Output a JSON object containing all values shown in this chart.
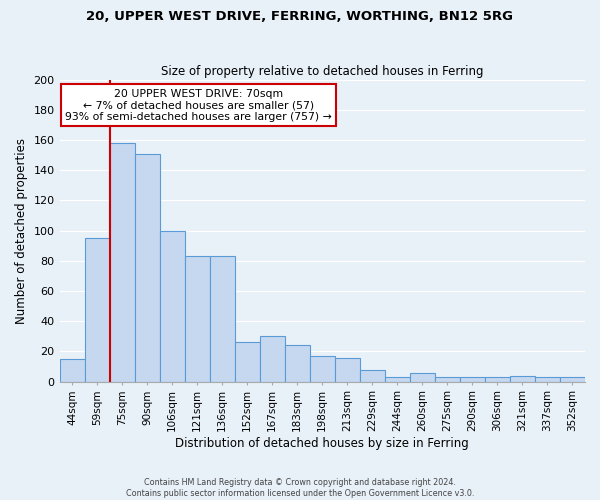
{
  "title": "20, UPPER WEST DRIVE, FERRING, WORTHING, BN12 5RG",
  "subtitle": "Size of property relative to detached houses in Ferring",
  "xlabel": "Distribution of detached houses by size in Ferring",
  "ylabel": "Number of detached properties",
  "bar_labels": [
    "44sqm",
    "59sqm",
    "75sqm",
    "90sqm",
    "106sqm",
    "121sqm",
    "136sqm",
    "152sqm",
    "167sqm",
    "183sqm",
    "198sqm",
    "213sqm",
    "229sqm",
    "244sqm",
    "260sqm",
    "275sqm",
    "290sqm",
    "306sqm",
    "321sqm",
    "337sqm",
    "352sqm"
  ],
  "bar_values": [
    15,
    95,
    158,
    151,
    100,
    83,
    83,
    26,
    30,
    24,
    17,
    16,
    8,
    3,
    6,
    3,
    3,
    3,
    4,
    3,
    3
  ],
  "bar_color": "#c5d8f0",
  "bar_edge_color": "#5b9bd5",
  "bg_color": "#e8f0f8",
  "grid_color": "#ffffff",
  "property_size": "70sqm",
  "pct_smaller": "7%",
  "n_smaller": 57,
  "pct_larger_semi": "93%",
  "n_larger_semi": 757,
  "vline_x_index": 1.5,
  "annotation_box_color": "#ffffff",
  "annotation_border_color": "#cc0000",
  "ylim": [
    0,
    200
  ],
  "yticks": [
    0,
    20,
    40,
    60,
    80,
    100,
    120,
    140,
    160,
    180,
    200
  ],
  "footer_line1": "Contains HM Land Registry data © Crown copyright and database right 2024.",
  "footer_line2": "Contains public sector information licensed under the Open Government Licence v3.0."
}
